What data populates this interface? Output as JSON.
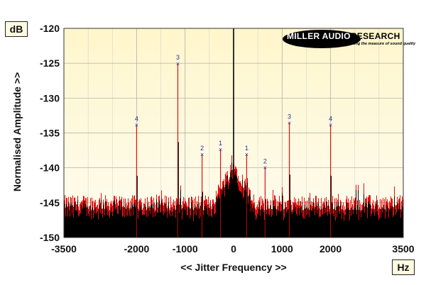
{
  "units": {
    "y": "dB",
    "x": "Hz"
  },
  "brand": {
    "name_part1": "MILLER AUDIO",
    "name_part2": "RESEARCH",
    "tagline": "Getting the measure of sound quality"
  },
  "colors": {
    "background": "#fdfbe4",
    "plot_top": "#fff8d2",
    "grid": "#a8a8a0",
    "noise_red": "#e01010",
    "noise_black": "#000000",
    "marker": "#2a2aa8"
  },
  "chart_data": {
    "type": "line",
    "title": "",
    "xlabel": "<< Jitter Frequency >>",
    "ylabel": "Normalised Amplitude >>",
    "xlim": [
      -3500,
      3500
    ],
    "ylim": [
      -150,
      -120
    ],
    "xticks": [
      -3500,
      -2000,
      -1000,
      0,
      1000,
      2000,
      3500
    ],
    "xtick_labels": [
      "-3500",
      "-2000",
      "-1000",
      "0",
      "1000",
      "2000",
      "3500"
    ],
    "yticks": [
      -120,
      -125,
      -130,
      -135,
      -140,
      -145,
      -150
    ],
    "ytick_labels": [
      "-120",
      "-125",
      "-130",
      "-135",
      "-140",
      "-145",
      "-150"
    ],
    "grid": true,
    "noise_floor_db": -145,
    "central_carrier": {
      "x": 0,
      "y": -120
    },
    "series": [
      {
        "peaks": [
          {
            "x": -2000,
            "y": -133.9,
            "label": "4"
          },
          {
            "x": -1150,
            "y": -125.1,
            "label": "3"
          },
          {
            "x": -650,
            "y": -138.1,
            "label": "2"
          },
          {
            "x": -270,
            "y": -137.4,
            "label": "1"
          },
          {
            "x": 270,
            "y": -138.1,
            "label": "1"
          },
          {
            "x": 650,
            "y": -140.0,
            "label": "2"
          },
          {
            "x": 1150,
            "y": -133.6,
            "label": "3"
          },
          {
            "x": 2000,
            "y": -133.9,
            "label": "4"
          }
        ]
      }
    ]
  }
}
